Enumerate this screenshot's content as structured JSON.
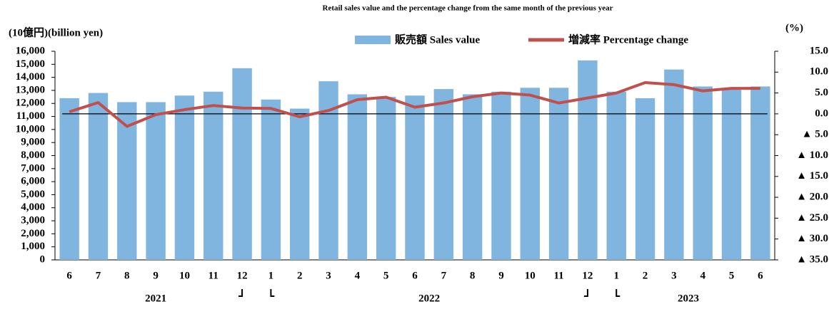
{
  "chart_data": {
    "type": "bar_line",
    "subtitle": "Retail sales value and the percentage change from the same month of the previous year",
    "y_label": "(10億円)(billion yen)",
    "y2_label": "(%)",
    "categories": [
      "6",
      "7",
      "8",
      "9",
      "10",
      "11",
      "12",
      "1",
      "2",
      "3",
      "4",
      "5",
      "6",
      "7",
      "8",
      "9",
      "10",
      "11",
      "12",
      "1",
      "2",
      "3",
      "4",
      "5",
      "6"
    ],
    "years": [
      {
        "label": "2021",
        "months": 7
      },
      {
        "label": "2022",
        "months": 12
      },
      {
        "label": "2023",
        "months": 6
      }
    ],
    "series": [
      {
        "name": "販売額 Sales value",
        "color": "#80b5e0",
        "kind": "bar",
        "values": [
          12400,
          12800,
          12100,
          12100,
          12600,
          12900,
          14700,
          12300,
          11600,
          13700,
          12700,
          12500,
          12600,
          13100,
          12700,
          12900,
          13200,
          13200,
          15300,
          12900,
          12400,
          14600,
          13300,
          13100,
          13300
        ]
      },
      {
        "name": "増減率 Percentage change",
        "color": "#c0504d",
        "kind": "line",
        "axis": "y2",
        "values": [
          0.5,
          2.7,
          -3.0,
          -0.2,
          1.0,
          2.0,
          1.4,
          1.3,
          -0.7,
          0.8,
          3.4,
          4.0,
          1.6,
          2.6,
          4.1,
          5.0,
          4.5,
          2.6,
          3.8,
          5.0,
          7.5,
          7.0,
          5.5,
          6.1,
          6.1
        ]
      }
    ],
    "ylim": [
      0,
      16000
    ],
    "yticks": [
      0,
      {
        "value": 1000,
        "label": "1,000"
      },
      {
        "value": 2000,
        "label": "2,000"
      },
      {
        "value": 3000,
        "label": "3,000"
      },
      {
        "value": 4000,
        "label": "4,000"
      },
      {
        "value": 5000,
        "label": "5,000"
      },
      {
        "value": 6000,
        "label": "6,000"
      },
      {
        "value": 7000,
        "label": "7,000"
      },
      {
        "value": 8000,
        "label": "8,000"
      },
      {
        "value": 9000,
        "label": "9,000"
      },
      {
        "value": 10000,
        "label": "10,000"
      },
      {
        "value": 11000,
        "label": "11,000"
      },
      {
        "value": 12000,
        "label": "12,000"
      },
      {
        "value": 13000,
        "label": "13,000"
      },
      {
        "value": 14000,
        "label": "14,000"
      },
      {
        "value": 15000,
        "label": "15,000"
      },
      {
        "value": 16000,
        "label": "16,000"
      }
    ],
    "y2lim": [
      -35,
      15
    ],
    "y2ticks": [
      {
        "value": 15,
        "label": "15.0"
      },
      {
        "value": 10,
        "label": "10.0"
      },
      {
        "value": 5,
        "label": "5.0"
      },
      {
        "value": 0,
        "label": "0.0"
      },
      {
        "value": -5,
        "label": "▲ 5.0"
      },
      {
        "value": -10,
        "label": "▲ 10.0"
      },
      {
        "value": -15,
        "label": "▲ 15.0"
      },
      {
        "value": -20,
        "label": "▲ 20.0"
      },
      {
        "value": -25,
        "label": "▲ 25.0"
      },
      {
        "value": -30,
        "label": "▲ 30.0"
      },
      {
        "value": -35,
        "label": "▲ 35.0"
      }
    ],
    "zero_line": true
  }
}
